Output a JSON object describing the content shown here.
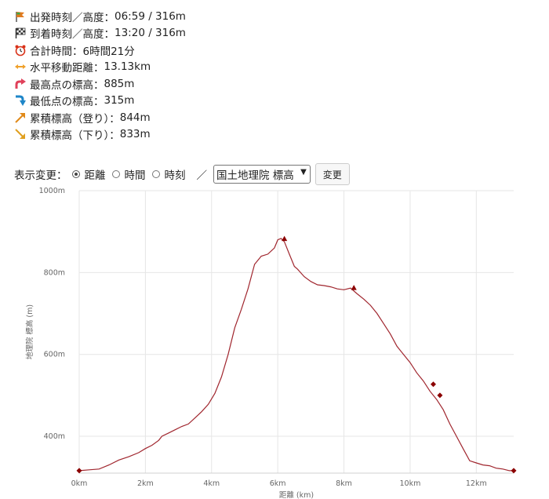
{
  "stats": [
    {
      "icon": "start-flag-icon",
      "label": "出発時刻／高度：",
      "value": "06:59 / 316m"
    },
    {
      "icon": "checkered-flag-icon",
      "label": "到着時刻／高度：",
      "value": "13:20 / 316m"
    },
    {
      "icon": "alarm-clock-icon",
      "label": "合計時間：",
      "value": "6時間21分"
    },
    {
      "icon": "horizontal-arrow-icon",
      "label": "水平移動距離：",
      "value": "13.13km"
    },
    {
      "icon": "up-turn-arrow-icon",
      "label": "最高点の標高：",
      "value": "885m"
    },
    {
      "icon": "down-turn-arrow-icon",
      "label": "最低点の標高：",
      "value": "315m"
    },
    {
      "icon": "ascent-arrow-icon",
      "label": "累積標高（登り）：",
      "value": "844m"
    },
    {
      "icon": "descent-arrow-icon",
      "label": "累積標高（下り）：",
      "value": "833m"
    }
  ],
  "icon_colors": {
    "start-flag-icon": "#e07a1f",
    "checkered-flag-icon": "#333333",
    "alarm-clock-icon": "#d9331a",
    "horizontal-arrow-icon": "#f0a02a",
    "up-turn-arrow-icon": "#e0405a",
    "down-turn-arrow-icon": "#1e86c8",
    "ascent-arrow-icon": "#e08a1a",
    "descent-arrow-icon": "#e0a020"
  },
  "controls": {
    "label": "表示変更：",
    "options": [
      "距離",
      "時間",
      "時刻"
    ],
    "selected": "距離",
    "separator": "／",
    "select_value": "国土地理院 標高",
    "button_label": "変更"
  },
  "chart_data": {
    "type": "line",
    "xlabel": "距離 (km)",
    "ylabel": "地理院 標高 (m)",
    "xlim": [
      0,
      13.13
    ],
    "ylim": [
      310,
      1000
    ],
    "xticks": [
      0,
      2,
      4,
      6,
      8,
      10,
      12
    ],
    "xtick_labels": [
      "0km",
      "2km",
      "4km",
      "6km",
      "8km",
      "10km",
      "12km"
    ],
    "yticks": [
      400,
      600,
      800,
      1000
    ],
    "ytick_labels": [
      "400m",
      "600m",
      "800m",
      "1000m"
    ],
    "grid": true,
    "line_color": "#a0262e",
    "series": [
      {
        "x": [
          0,
          0.3,
          0.6,
          0.9,
          1.2,
          1.5,
          1.8,
          2.0,
          2.2,
          2.4,
          2.5,
          2.7,
          2.9,
          3.1,
          3.3,
          3.5,
          3.7,
          3.9,
          4.1,
          4.3,
          4.5,
          4.7,
          4.9,
          5.1,
          5.3,
          5.5,
          5.7,
          5.9,
          6.0,
          6.1,
          6.2,
          6.35,
          6.5,
          6.6,
          6.8,
          7.0,
          7.2,
          7.4,
          7.6,
          7.8,
          8.0,
          8.2,
          8.4,
          8.6,
          8.8,
          9.0,
          9.2,
          9.4,
          9.6,
          9.8,
          10.0,
          10.2,
          10.4,
          10.6,
          10.8,
          11.0,
          11.2,
          11.4,
          11.6,
          11.8,
          12.0,
          12.2,
          12.4,
          12.6,
          12.8,
          13.0,
          13.13
        ],
        "y": [
          316,
          318,
          320,
          330,
          342,
          350,
          360,
          370,
          378,
          390,
          400,
          408,
          416,
          424,
          430,
          445,
          460,
          478,
          505,
          545,
          600,
          665,
          710,
          760,
          820,
          840,
          845,
          860,
          880,
          883,
          875,
          845,
          815,
          808,
          790,
          778,
          770,
          768,
          765,
          760,
          758,
          762,
          748,
          735,
          720,
          700,
          675,
          650,
          620,
          600,
          580,
          555,
          535,
          510,
          490,
          465,
          430,
          400,
          370,
          340,
          335,
          330,
          328,
          322,
          320,
          316,
          316
        ]
      }
    ],
    "markers": [
      {
        "shape": "diamond",
        "x": 0,
        "y": 316
      },
      {
        "shape": "triangle",
        "x": 6.2,
        "y": 882
      },
      {
        "shape": "triangle",
        "x": 8.3,
        "y": 762
      },
      {
        "shape": "diamond",
        "x": 10.7,
        "y": 527
      },
      {
        "shape": "diamond",
        "x": 10.9,
        "y": 500
      },
      {
        "shape": "diamond",
        "x": 13.13,
        "y": 316
      }
    ]
  }
}
